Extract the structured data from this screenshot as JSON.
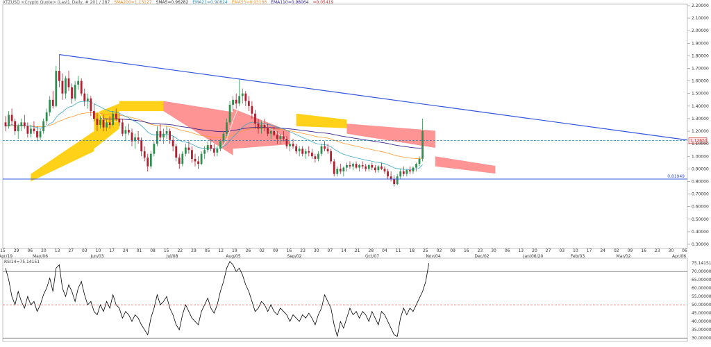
{
  "header": {
    "symbol": "XTZUSD <Crypto Quote> (Last), Daily, # 201 / 287",
    "sma200": "SMA200=1.13127",
    "sma5": "SMA5=0.96282",
    "ema21": "EMA21=0.90824",
    "ema55": "EMA55=0.93188",
    "ema110": "EMA110=0.98064",
    "extra": "=0.05419"
  },
  "colors": {
    "background": "#ffffff",
    "candle_up": "#2f8f4e",
    "candle_down": "#b02030",
    "trendline": "#3355dd",
    "kumo_bull": "#ffcc00",
    "kumo_bear": "#ff8888",
    "ema21": "#3aa6c8",
    "ema55": "#ff9a2e",
    "ema110": "#33208a",
    "sma5": "#ffffff",
    "rsi_line": "#000000",
    "rsi_mid": "#e03030"
  },
  "chart_data": {
    "type": "candlestick",
    "symbol": "XTZUSD",
    "timeframe": "Daily",
    "price_axis": {
      "min": 0.3,
      "max": 2.2,
      "ticks": [
        "2.20000",
        "2.10000",
        "2.00000",
        "1.90000",
        "1.80000",
        "1.70000",
        "1.60000",
        "1.50000",
        "1.40000",
        "1.30000",
        "1.20000",
        "1.10000",
        "1.00000",
        "0.90000",
        "0.80000",
        "0.70000",
        "0.60000",
        "0.50000",
        "0.40000",
        "0.30000"
      ]
    },
    "date_ticks": [
      "15",
      "29",
      "06",
      "20",
      "13",
      "27",
      "03",
      "10",
      "17",
      "24",
      "01",
      "08",
      "15",
      "22",
      "29",
      "05",
      "12",
      "19",
      "26",
      "02",
      "09",
      "16",
      "23",
      "30",
      "07",
      "14",
      "21",
      "28",
      "04",
      "11",
      "18",
      "25",
      "02",
      "09",
      "16",
      "23",
      "30",
      "06",
      "13",
      "20",
      "27",
      "03",
      "10",
      "17",
      "24",
      "02",
      "09",
      "16",
      "23",
      "30",
      "06"
    ],
    "date_labels": [
      "Apr/19",
      "May/06",
      "Jun/03",
      "Jul/08",
      "Aug/05",
      "Sep/02",
      "Oct/07",
      "Nov/04",
      "Dec/02",
      "Jan/06/20",
      "Feb/03",
      "Mar/02",
      "Apr/06"
    ],
    "horizontal_line": {
      "value": 0.81949,
      "label": "0.81949"
    },
    "current_price_label": "1.12651",
    "trendline": {
      "from": [
        17,
        1.81
      ],
      "to": [
        200,
        1.13
      ]
    },
    "candles": [
      [
        1.27,
        1.32,
        1.2,
        1.24
      ],
      [
        1.24,
        1.36,
        1.22,
        1.33
      ],
      [
        1.33,
        1.38,
        1.25,
        1.28
      ],
      [
        1.28,
        1.3,
        1.17,
        1.2
      ],
      [
        1.2,
        1.26,
        1.14,
        1.24
      ],
      [
        1.24,
        1.3,
        1.2,
        1.27
      ],
      [
        1.27,
        1.33,
        1.22,
        1.24
      ],
      [
        1.24,
        1.27,
        1.15,
        1.18
      ],
      [
        1.18,
        1.25,
        1.15,
        1.22
      ],
      [
        1.22,
        1.28,
        1.18,
        1.2
      ],
      [
        1.2,
        1.24,
        1.12,
        1.15
      ],
      [
        1.15,
        1.22,
        1.13,
        1.2
      ],
      [
        1.2,
        1.3,
        1.18,
        1.28
      ],
      [
        1.28,
        1.38,
        1.25,
        1.35
      ],
      [
        1.35,
        1.48,
        1.32,
        1.45
      ],
      [
        1.45,
        1.52,
        1.38,
        1.4
      ],
      [
        1.4,
        1.72,
        1.39,
        1.68
      ],
      [
        1.68,
        1.81,
        1.55,
        1.6
      ],
      [
        1.6,
        1.66,
        1.45,
        1.5
      ],
      [
        1.5,
        1.64,
        1.46,
        1.62
      ],
      [
        1.62,
        1.68,
        1.52,
        1.55
      ],
      [
        1.55,
        1.58,
        1.42,
        1.46
      ],
      [
        1.46,
        1.6,
        1.44,
        1.57
      ],
      [
        1.57,
        1.64,
        1.53,
        1.6
      ],
      [
        1.6,
        1.62,
        1.48,
        1.5
      ],
      [
        1.5,
        1.54,
        1.4,
        1.44
      ],
      [
        1.44,
        1.5,
        1.38,
        1.46
      ],
      [
        1.46,
        1.48,
        1.32,
        1.36
      ],
      [
        1.36,
        1.42,
        1.28,
        1.3
      ],
      [
        1.3,
        1.34,
        1.2,
        1.25
      ],
      [
        1.25,
        1.32,
        1.22,
        1.29
      ],
      [
        1.29,
        1.33,
        1.2,
        1.23
      ],
      [
        1.23,
        1.3,
        1.2,
        1.27
      ],
      [
        1.27,
        1.32,
        1.22,
        1.25
      ],
      [
        1.25,
        1.36,
        1.24,
        1.34
      ],
      [
        1.34,
        1.38,
        1.28,
        1.3
      ],
      [
        1.3,
        1.34,
        1.24,
        1.27
      ],
      [
        1.27,
        1.3,
        1.16,
        1.18
      ],
      [
        1.18,
        1.24,
        1.12,
        1.21
      ],
      [
        1.21,
        1.26,
        1.17,
        1.19
      ],
      [
        1.19,
        1.22,
        1.08,
        1.12
      ],
      [
        1.12,
        1.18,
        1.06,
        1.15
      ],
      [
        1.15,
        1.2,
        1.1,
        1.13
      ],
      [
        1.13,
        1.15,
        1.0,
        1.04
      ],
      [
        1.04,
        1.08,
        0.96,
        0.99
      ],
      [
        0.99,
        1.02,
        0.88,
        0.92
      ],
      [
        0.92,
        1.04,
        0.9,
        1.02
      ],
      [
        1.02,
        1.12,
        1.0,
        1.1
      ],
      [
        1.1,
        1.24,
        1.08,
        1.2
      ],
      [
        1.2,
        1.26,
        1.12,
        1.15
      ],
      [
        1.15,
        1.22,
        1.1,
        1.18
      ],
      [
        1.18,
        1.24,
        1.14,
        1.2
      ],
      [
        1.2,
        1.22,
        1.1,
        1.13
      ],
      [
        1.13,
        1.16,
        1.04,
        1.08
      ],
      [
        1.08,
        1.1,
        0.96,
        0.99
      ],
      [
        0.99,
        1.02,
        0.9,
        0.94
      ],
      [
        0.94,
        1.04,
        0.92,
        1.02
      ],
      [
        1.02,
        1.1,
        1.0,
        1.07
      ],
      [
        1.07,
        1.12,
        1.02,
        1.05
      ],
      [
        1.05,
        1.08,
        0.95,
        0.98
      ],
      [
        0.98,
        1.02,
        0.92,
        0.96
      ],
      [
        0.96,
        1.0,
        0.9,
        0.94
      ],
      [
        0.94,
        1.04,
        0.93,
        1.02
      ],
      [
        1.02,
        1.08,
        0.98,
        1.05
      ],
      [
        1.05,
        1.12,
        1.03,
        1.09
      ],
      [
        1.09,
        1.14,
        1.04,
        1.06
      ],
      [
        1.06,
        1.1,
        1.0,
        1.03
      ],
      [
        1.03,
        1.08,
        1.0,
        1.06
      ],
      [
        1.06,
        1.14,
        1.04,
        1.12
      ],
      [
        1.12,
        1.2,
        1.1,
        1.18
      ],
      [
        1.18,
        1.3,
        1.16,
        1.27
      ],
      [
        1.27,
        1.44,
        1.25,
        1.41
      ],
      [
        1.41,
        1.48,
        1.36,
        1.45
      ],
      [
        1.45,
        1.5,
        1.38,
        1.42
      ],
      [
        1.42,
        1.61,
        1.4,
        1.48
      ],
      [
        1.48,
        1.54,
        1.42,
        1.5
      ],
      [
        1.5,
        1.52,
        1.4,
        1.44
      ],
      [
        1.44,
        1.48,
        1.36,
        1.4
      ],
      [
        1.4,
        1.44,
        1.3,
        1.34
      ],
      [
        1.34,
        1.37,
        1.22,
        1.26
      ],
      [
        1.26,
        1.3,
        1.18,
        1.22
      ],
      [
        1.22,
        1.28,
        1.18,
        1.25
      ],
      [
        1.25,
        1.3,
        1.2,
        1.23
      ],
      [
        1.23,
        1.26,
        1.16,
        1.18
      ],
      [
        1.18,
        1.22,
        1.14,
        1.2
      ],
      [
        1.2,
        1.24,
        1.16,
        1.17
      ],
      [
        1.17,
        1.2,
        1.1,
        1.14
      ],
      [
        1.14,
        1.18,
        1.1,
        1.16
      ],
      [
        1.16,
        1.2,
        1.12,
        1.14
      ],
      [
        1.14,
        1.16,
        1.06,
        1.08
      ],
      [
        1.08,
        1.12,
        1.04,
        1.1
      ],
      [
        1.1,
        1.14,
        1.06,
        1.08
      ],
      [
        1.08,
        1.1,
        1.02,
        1.04
      ],
      [
        1.04,
        1.08,
        1.0,
        1.06
      ],
      [
        1.06,
        1.08,
        1.0,
        1.02
      ],
      [
        1.02,
        1.06,
        0.98,
        1.04
      ],
      [
        1.04,
        1.08,
        1.0,
        1.03
      ],
      [
        1.03,
        1.06,
        0.98,
        1.0
      ],
      [
        1.0,
        1.02,
        0.95,
        0.98
      ],
      [
        0.98,
        1.04,
        0.96,
        1.02
      ],
      [
        1.02,
        1.1,
        1.0,
        1.08
      ],
      [
        1.08,
        1.12,
        1.04,
        1.06
      ],
      [
        1.06,
        1.1,
        1.02,
        1.04
      ],
      [
        1.04,
        1.06,
        0.94,
        0.96
      ],
      [
        0.96,
        0.98,
        0.84,
        0.86
      ],
      [
        0.86,
        0.92,
        0.84,
        0.9
      ],
      [
        0.9,
        0.94,
        0.86,
        0.88
      ],
      [
        0.88,
        0.92,
        0.84,
        0.91
      ],
      [
        0.91,
        0.95,
        0.88,
        0.93
      ],
      [
        0.93,
        0.96,
        0.9,
        0.92
      ],
      [
        0.92,
        0.95,
        0.89,
        0.94
      ],
      [
        0.94,
        0.96,
        0.9,
        0.91
      ],
      [
        0.91,
        0.94,
        0.88,
        0.93
      ],
      [
        0.93,
        0.96,
        0.9,
        0.92
      ],
      [
        0.92,
        0.94,
        0.88,
        0.9
      ],
      [
        0.9,
        0.94,
        0.88,
        0.93
      ],
      [
        0.93,
        0.95,
        0.89,
        0.91
      ],
      [
        0.91,
        0.93,
        0.87,
        0.89
      ],
      [
        0.89,
        0.93,
        0.87,
        0.92
      ],
      [
        0.92,
        0.95,
        0.89,
        0.9
      ],
      [
        0.9,
        0.92,
        0.86,
        0.88
      ],
      [
        0.88,
        0.9,
        0.82,
        0.84
      ],
      [
        0.84,
        0.88,
        0.8,
        0.82
      ],
      [
        0.82,
        0.85,
        0.76,
        0.78
      ],
      [
        0.78,
        0.86,
        0.77,
        0.84
      ],
      [
        0.84,
        0.9,
        0.82,
        0.88
      ],
      [
        0.88,
        0.92,
        0.84,
        0.86
      ],
      [
        0.86,
        0.9,
        0.84,
        0.89
      ],
      [
        0.89,
        0.92,
        0.86,
        0.88
      ],
      [
        0.88,
        0.92,
        0.86,
        0.91
      ],
      [
        0.91,
        0.95,
        0.88,
        0.94
      ],
      [
        0.94,
        1.0,
        0.92,
        0.98
      ],
      [
        0.98,
        1.3,
        0.96,
        1.2
      ]
    ],
    "rsi": {
      "name": "RSI",
      "current_label": "RSI14=75.14151",
      "current_value": 75.14151,
      "axis_ticks": [
        "75.14151",
        "70.00000",
        "65.00000",
        "60.00000",
        "55.00000",
        "50.00000",
        "45.00000",
        "40.00000",
        "35.00000",
        "30.00000"
      ],
      "overbought": 70,
      "oversold": 30,
      "mid": 50,
      "values": [
        72,
        65,
        55,
        50,
        58,
        52,
        48,
        55,
        50,
        52,
        46,
        50,
        56,
        60,
        66,
        58,
        72,
        74,
        60,
        55,
        62,
        58,
        52,
        60,
        64,
        56,
        50,
        52,
        46,
        44,
        50,
        46,
        52,
        48,
        56,
        50,
        48,
        42,
        46,
        44,
        40,
        44,
        42,
        38,
        35,
        32,
        42,
        48,
        56,
        50,
        52,
        55,
        48,
        44,
        38,
        35,
        44,
        50,
        46,
        42,
        40,
        38,
        46,
        50,
        54,
        48,
        45,
        50,
        58,
        64,
        72,
        76,
        74,
        70,
        72,
        68,
        62,
        58,
        52,
        46,
        48,
        52,
        50,
        46,
        50,
        46,
        44,
        48,
        46,
        44,
        40,
        44,
        42,
        40,
        44,
        42,
        45,
        42,
        38,
        44,
        48,
        56,
        52,
        48,
        38,
        31,
        40,
        36,
        42,
        48,
        44,
        46,
        42,
        46,
        44,
        40,
        46,
        42,
        38,
        46,
        44,
        40,
        36,
        32,
        31,
        42,
        48,
        44,
        48,
        46,
        50,
        54,
        58,
        64,
        75
      ]
    }
  }
}
